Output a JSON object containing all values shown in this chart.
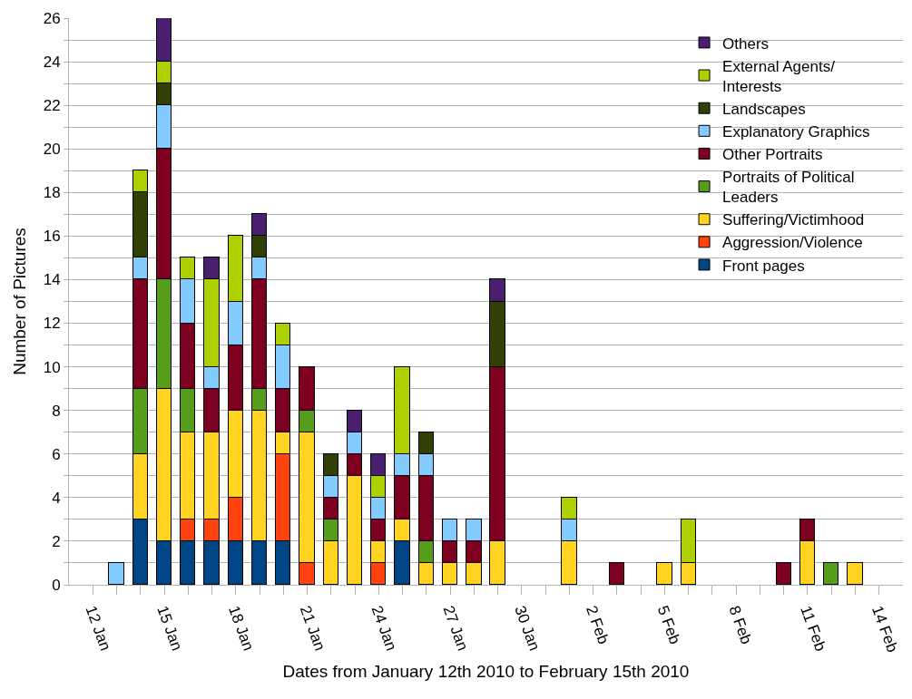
{
  "chart_data": {
    "type": "bar",
    "stacked": true,
    "xlabel": "Dates from January 12th 2010 to February 15th 2010",
    "ylabel": "Number of Pictures",
    "x": [
      "2010-01-13",
      "2010-01-14",
      "2010-01-15",
      "2010-01-16",
      "2010-01-17",
      "2010-01-18",
      "2010-01-19",
      "2010-01-20",
      "2010-01-21",
      "2010-01-22",
      "2010-01-23",
      "2010-01-24",
      "2010-01-25",
      "2010-01-26",
      "2010-01-27",
      "2010-01-28",
      "2010-01-29",
      "2010-02-01",
      "2010-02-03",
      "2010-02-05",
      "2010-02-06",
      "2010-02-10",
      "2010-02-11",
      "2010-02-12",
      "2010-02-13"
    ],
    "series": [
      {
        "name": "Front pages",
        "color": "#004586",
        "values": [
          null,
          3,
          2,
          2,
          2,
          2,
          2,
          2,
          null,
          null,
          null,
          null,
          2,
          null,
          null,
          null,
          null,
          null,
          null,
          null,
          null,
          null,
          null,
          null,
          null
        ]
      },
      {
        "name": "Aggression/Violence",
        "color": "#ff420e",
        "values": [
          null,
          null,
          null,
          1,
          1,
          2,
          null,
          4,
          1,
          null,
          null,
          1,
          null,
          null,
          null,
          null,
          null,
          null,
          null,
          null,
          null,
          null,
          null,
          null,
          null
        ]
      },
      {
        "name": "Suffering/Victimhood",
        "color": "#ffd320",
        "values": [
          null,
          3,
          7,
          4,
          4,
          4,
          6,
          1,
          6,
          2,
          5,
          1,
          1,
          1,
          1,
          1,
          2,
          2,
          null,
          1,
          1,
          null,
          2,
          null,
          1
        ]
      },
      {
        "name": "Portraits of Political Leaders",
        "color": "#579d1c",
        "values": [
          null,
          3,
          5,
          2,
          null,
          null,
          1,
          null,
          1,
          1,
          null,
          null,
          null,
          1,
          null,
          null,
          null,
          null,
          null,
          null,
          null,
          null,
          null,
          1,
          null
        ]
      },
      {
        "name": "Other Portraits",
        "color": "#7e0021",
        "values": [
          null,
          5,
          6,
          3,
          2,
          3,
          5,
          2,
          2,
          1,
          1,
          1,
          2,
          3,
          1,
          1,
          8,
          null,
          1,
          null,
          null,
          1,
          1,
          null,
          null
        ]
      },
      {
        "name": "Explanatory Graphics",
        "color": "#83caff",
        "values": [
          1,
          1,
          2,
          2,
          1,
          2,
          1,
          2,
          null,
          1,
          1,
          1,
          1,
          1,
          1,
          1,
          null,
          1,
          null,
          null,
          null,
          null,
          null,
          null,
          null
        ]
      },
      {
        "name": "Landscapes",
        "color": "#314004",
        "values": [
          null,
          3,
          1,
          null,
          null,
          null,
          1,
          null,
          null,
          1,
          null,
          null,
          null,
          1,
          null,
          null,
          3,
          null,
          null,
          null,
          null,
          null,
          null,
          null,
          null
        ]
      },
      {
        "name": "External Agents/ Interests",
        "color": "#aecf00",
        "values": [
          null,
          1,
          1,
          1,
          4,
          3,
          null,
          1,
          null,
          null,
          null,
          1,
          4,
          null,
          null,
          null,
          null,
          1,
          null,
          null,
          2,
          null,
          null,
          null,
          null
        ]
      },
      {
        "name": "Others",
        "color": "#4b1f6f",
        "values": [
          null,
          null,
          2,
          null,
          1,
          null,
          1,
          null,
          null,
          null,
          1,
          1,
          null,
          null,
          null,
          null,
          1,
          null,
          null,
          null,
          null,
          null,
          null,
          null,
          null
        ]
      }
    ],
    "xlim": [
      "2010-01-11",
      "2010-02-15"
    ],
    "xticks": [
      {
        "value": "2010-01-12",
        "label": "12 Jan"
      },
      {
        "value": "2010-01-13",
        "label": null
      },
      {
        "value": "2010-01-14",
        "label": null
      },
      {
        "value": "2010-01-15",
        "label": "15 Jan"
      },
      {
        "value": "2010-01-16",
        "label": null
      },
      {
        "value": "2010-01-17",
        "label": null
      },
      {
        "value": "2010-01-18",
        "label": "18 Jan"
      },
      {
        "value": "2010-01-19",
        "label": null
      },
      {
        "value": "2010-01-20",
        "label": null
      },
      {
        "value": "2010-01-21",
        "label": "21 Jan"
      },
      {
        "value": "2010-01-22",
        "label": null
      },
      {
        "value": "2010-01-23",
        "label": null
      },
      {
        "value": "2010-01-24",
        "label": "24 Jan"
      },
      {
        "value": "2010-01-25",
        "label": null
      },
      {
        "value": "2010-01-26",
        "label": null
      },
      {
        "value": "2010-01-27",
        "label": "27 Jan"
      },
      {
        "value": "2010-01-28",
        "label": null
      },
      {
        "value": "2010-01-29",
        "label": null
      },
      {
        "value": "2010-01-30",
        "label": "30 Jan"
      },
      {
        "value": "2010-01-31",
        "label": null
      },
      {
        "value": "2010-02-01",
        "label": null
      },
      {
        "value": "2010-02-02",
        "label": "2 Feb"
      },
      {
        "value": "2010-02-03",
        "label": null
      },
      {
        "value": "2010-02-04",
        "label": null
      },
      {
        "value": "2010-02-05",
        "label": "5 Feb"
      },
      {
        "value": "2010-02-06",
        "label": null
      },
      {
        "value": "2010-02-07",
        "label": null
      },
      {
        "value": "2010-02-08",
        "label": "8 Feb"
      },
      {
        "value": "2010-02-09",
        "label": null
      },
      {
        "value": "2010-02-10",
        "label": null
      },
      {
        "value": "2010-02-11",
        "label": "11 Feb"
      },
      {
        "value": "2010-02-12",
        "label": null
      },
      {
        "value": "2010-02-13",
        "label": null
      },
      {
        "value": "2010-02-14",
        "label": "14 Feb"
      }
    ],
    "ylim": [
      0,
      26
    ],
    "yticks": [
      0,
      {
        "value": 1,
        "label": null
      },
      2,
      {
        "value": 3,
        "label": null
      },
      4,
      {
        "value": 5,
        "label": null
      },
      6,
      {
        "value": 7,
        "label": null
      },
      8,
      {
        "value": 9,
        "label": null
      },
      10,
      {
        "value": 11,
        "label": null
      },
      12,
      {
        "value": 13,
        "label": null
      },
      14,
      {
        "value": 15,
        "label": null
      },
      16,
      {
        "value": 17,
        "label": null
      },
      18,
      {
        "value": 19,
        "label": null
      },
      20,
      {
        "value": 21,
        "label": null
      },
      22,
      {
        "value": 23,
        "label": null
      },
      24,
      {
        "value": 25,
        "label": null
      },
      26
    ],
    "grid": "y",
    "legend": "top right"
  }
}
